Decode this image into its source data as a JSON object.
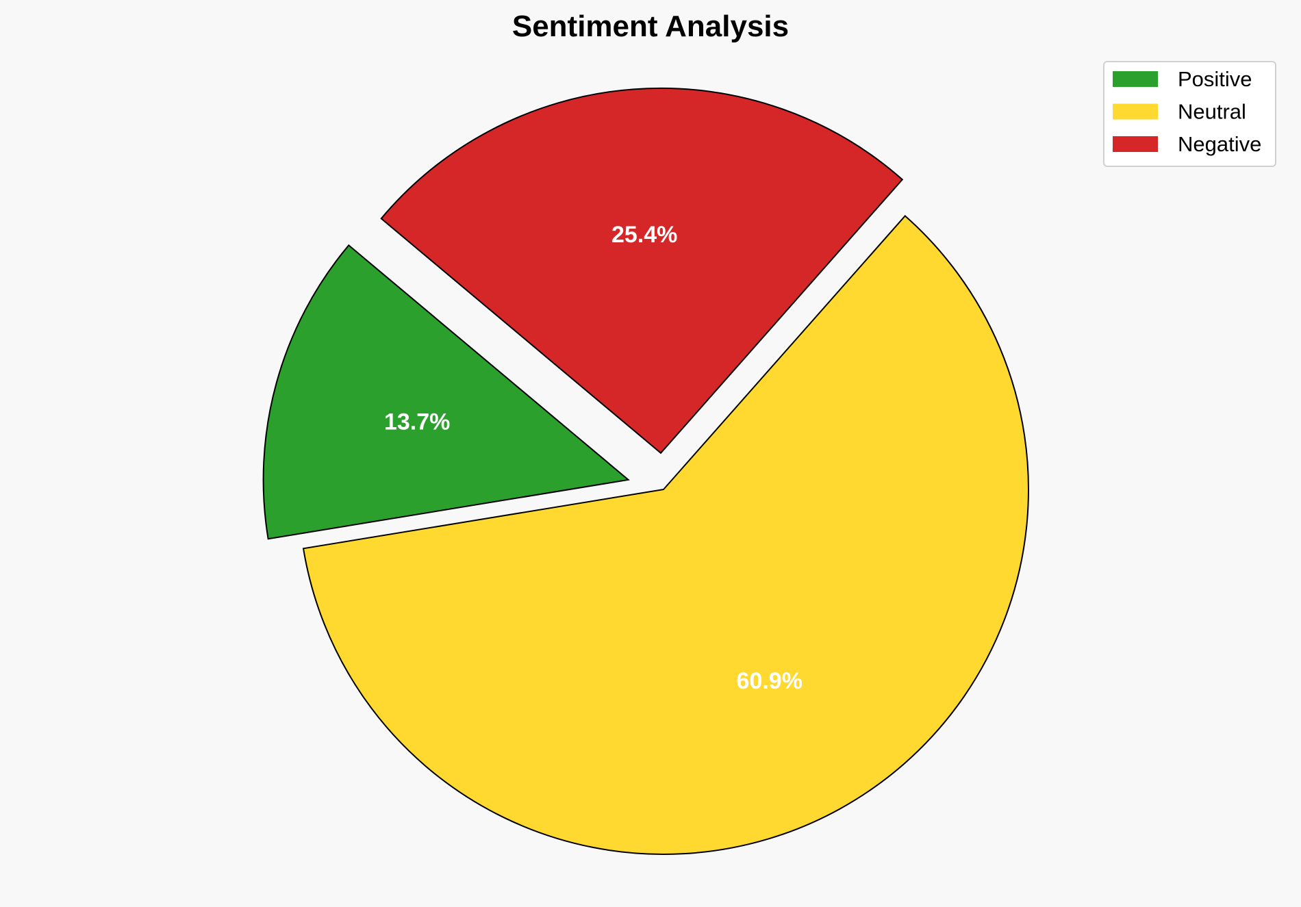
{
  "chart_data": {
    "type": "pie",
    "title": "Sentiment Analysis",
    "categories": [
      "Positive",
      "Neutral",
      "Negative"
    ],
    "values": [
      13.7,
      60.9,
      25.4
    ],
    "labels": [
      "13.7%",
      "60.9%",
      "25.4%"
    ],
    "colors": [
      "#2ca02c",
      "#ffd92f",
      "#d62728"
    ],
    "explode": [
      0.1,
      0,
      0.1
    ],
    "start_angle": 140,
    "direction": "counterclockwise",
    "legend_placement": "top-right"
  }
}
